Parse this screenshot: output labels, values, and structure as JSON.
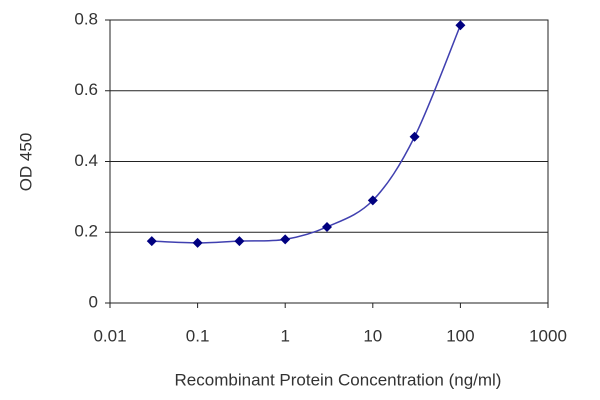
{
  "chart_data": {
    "type": "scatter",
    "x_label": "Recombinant Protein Concentration (ng/ml)",
    "y_label": "OD 450",
    "x": [
      0.03,
      0.1,
      0.3,
      1,
      3,
      10,
      30,
      100
    ],
    "series": [
      {
        "values": [
          0.175,
          0.17,
          0.175,
          0.18,
          0.215,
          0.29,
          0.47,
          0.785
        ],
        "color": "#000080",
        "line_color": "#4040b0"
      }
    ],
    "xscale": "log",
    "xlim": [
      0.01,
      1000
    ],
    "xticks": [
      0.01,
      0.1,
      1,
      10,
      100,
      1000
    ],
    "ylim": [
      0,
      0.8
    ],
    "yticks": [
      0,
      0.2,
      0.4,
      0.6,
      0.8
    ],
    "grid": true
  }
}
